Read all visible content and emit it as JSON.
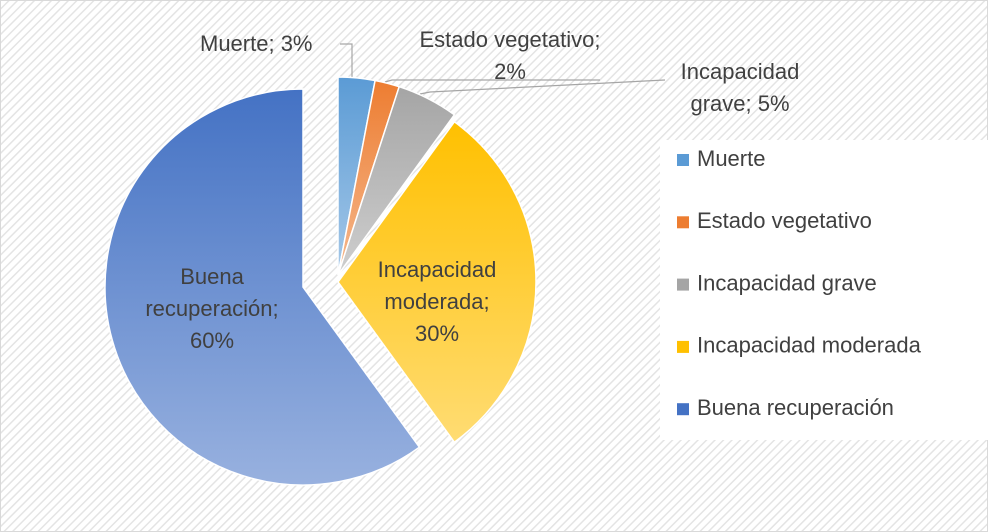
{
  "chart_data": {
    "type": "pie",
    "categories": [
      "Muerte",
      "Estado vegetativo",
      "Incapacidad grave",
      "Incapacidad moderada",
      "Buena recuperación"
    ],
    "values": [
      3,
      2,
      5,
      30,
      60
    ],
    "value_labels": [
      "Muerte; 3%",
      "Estado vegetativo; 2%",
      "Incapacidad grave; 5%",
      "Incapacidad moderada; 30%",
      "Buena recuperación; 60%"
    ],
    "colors": [
      "#5b9bd5",
      "#ed7d31",
      "#a5a5a5",
      "#ffc000",
      "#4472c4"
    ],
    "legend": "right"
  }
}
